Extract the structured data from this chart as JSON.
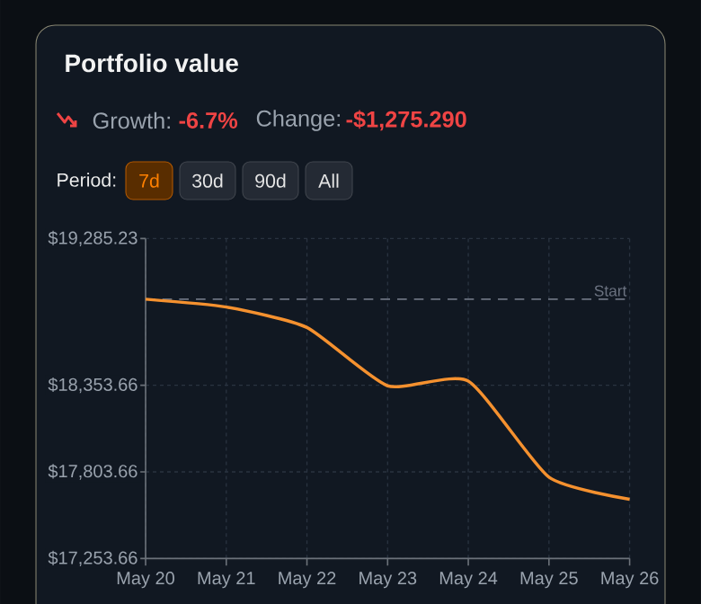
{
  "chart_data": {
    "type": "line",
    "title": "Portfolio value",
    "annotations": [
      "Growth:",
      "-6.7%",
      "Change:",
      "-$1,275.290",
      "Period:",
      "7d",
      "30d",
      "90d",
      "All"
    ],
    "categories": [
      "May 20",
      "May 21",
      "May 22",
      "May 23",
      "May 24",
      "May 25",
      "May 26"
    ],
    "series": [
      {
        "color": "#f5912f",
        "values": [
          18900,
          18850,
          18720,
          18350,
          18380,
          17770,
          17630
        ]
      }
    ],
    "ylim": [
      17253.66,
      19285.23
    ],
    "yticks": [
      {
        "value": 17253.66,
        "label": "$17,253.66"
      },
      {
        "value": 17803.66,
        "label": "$17,803.66"
      },
      {
        "value": 18353.66,
        "label": "$18,353.66"
      },
      {
        "value": 19285.23,
        "label": "$19,285.23"
      }
    ],
    "ref_lines": [
      {
        "axis": "y",
        "value": 18900,
        "label": "Start",
        "color": "#6b7280",
        "line_style": "dashed"
      }
    ],
    "grid": true,
    "marker": "none",
    "line_style": "solid"
  }
}
